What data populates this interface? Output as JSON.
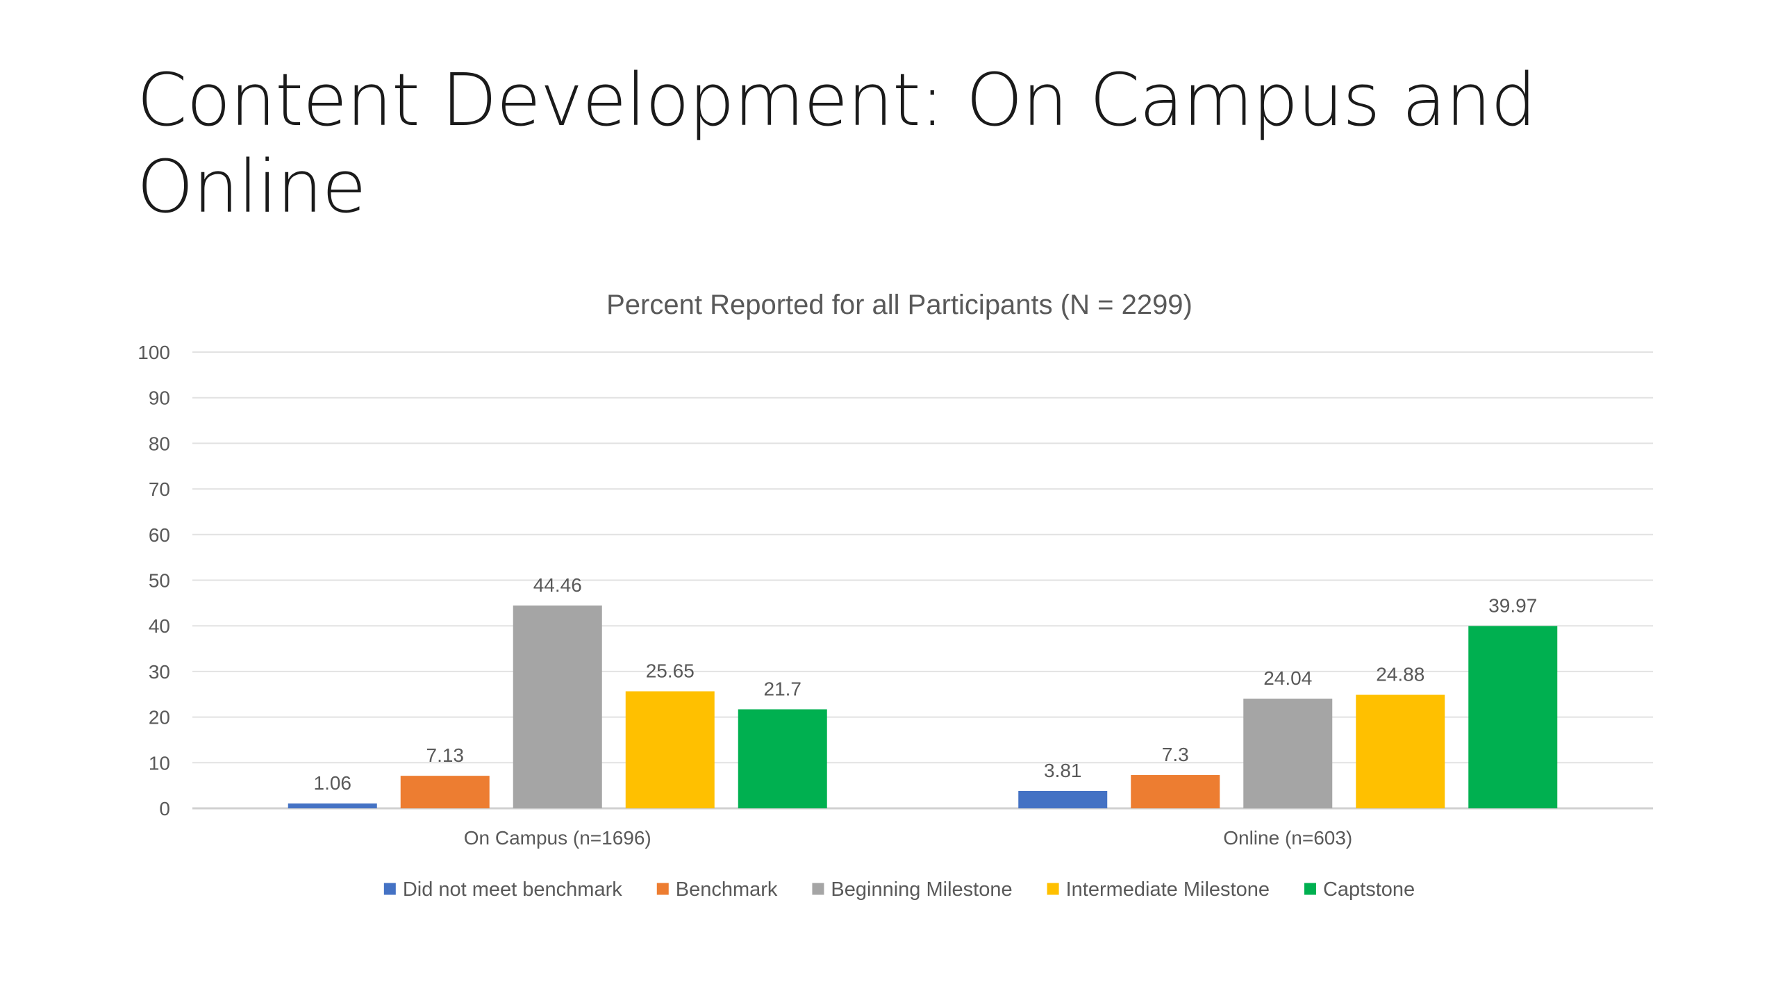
{
  "slide": {
    "title": "Content Development: On Campus and Online"
  },
  "chart_data": {
    "type": "bar",
    "title": "Percent Reported for all Participants (N = 2299)",
    "xlabel": "",
    "ylabel": "",
    "ylim": [
      0,
      100
    ],
    "yticks": [
      0,
      10,
      20,
      30,
      40,
      50,
      60,
      70,
      80,
      90,
      100
    ],
    "grid": true,
    "legend_position": "bottom",
    "categories": [
      "On Campus (n=1696)",
      "Online (n=603)"
    ],
    "series": [
      {
        "name": "Did not meet benchmark",
        "color": "#4472C4",
        "values": [
          1.06,
          3.81
        ]
      },
      {
        "name": "Benchmark",
        "color": "#ED7D31",
        "values": [
          7.13,
          7.3
        ]
      },
      {
        "name": "Beginning Milestone",
        "color": "#A5A5A5",
        "values": [
          44.46,
          24.04
        ]
      },
      {
        "name": "Intermediate Milestone",
        "color": "#FFC000",
        "values": [
          25.65,
          24.88
        ]
      },
      {
        "name": "Captstone",
        "color": "#00B050",
        "values": [
          21.7,
          39.97
        ]
      }
    ],
    "data_labels": [
      [
        "1.06",
        "3.81"
      ],
      [
        "7.13",
        "7.3"
      ],
      [
        "44.46",
        "24.04"
      ],
      [
        "25.65",
        "24.88"
      ],
      [
        "21.7",
        "39.97"
      ]
    ]
  }
}
